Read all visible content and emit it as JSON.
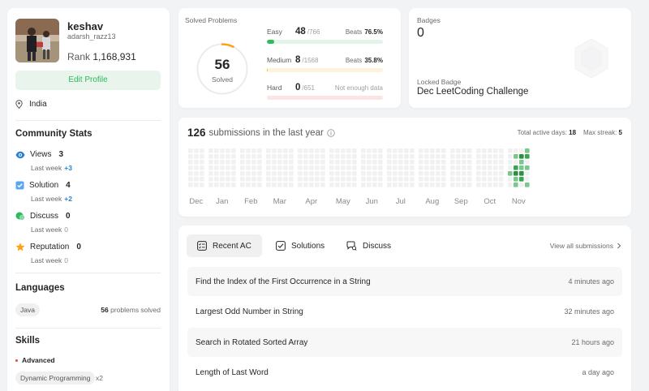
{
  "profile": {
    "name": "keshav",
    "handle": "adarsh_razz13",
    "rank_label": "Rank",
    "rank_value": "1,168,931",
    "edit_label": "Edit Profile",
    "location": "India"
  },
  "community": {
    "title": "Community Stats",
    "stats": [
      {
        "label": "Views",
        "value": "3",
        "sub_label": "Last week",
        "sub_value": "+3",
        "color": "#2a7fd4"
      },
      {
        "label": "Solution",
        "value": "4",
        "sub_label": "Last week",
        "sub_value": "+2",
        "color": "#2a7fd4"
      },
      {
        "label": "Discuss",
        "value": "0",
        "sub_label": "Last week",
        "sub_value": "0",
        "color": "#2cbb5d"
      },
      {
        "label": "Reputation",
        "value": "0",
        "sub_label": "Last week",
        "sub_value": "0",
        "color": "#ffa116"
      }
    ]
  },
  "languages": {
    "title": "Languages",
    "items": [
      {
        "name": "Java",
        "count": "56",
        "suffix": "problems solved"
      }
    ]
  },
  "skills": {
    "title": "Skills",
    "level": "Advanced",
    "items": [
      {
        "name": "Dynamic Programming",
        "count": "x2"
      }
    ]
  },
  "solved": {
    "title": "Solved Problems",
    "total": "56",
    "total_label": "Solved",
    "progress_fraction": 0.073,
    "difficulties": [
      {
        "name": "Easy",
        "solved": "48",
        "total": "/766",
        "beats_label": "Beats",
        "beats_value": "76.5%",
        "fraction": 0.063,
        "color": "#2cbb5d",
        "track": "#e3f4e8"
      },
      {
        "name": "Medium",
        "solved": "8",
        "total": "/1568",
        "beats_label": "Beats",
        "beats_value": "35.8%",
        "fraction": 0.005,
        "color": "#ffb800",
        "track": "#fdf3dc"
      },
      {
        "name": "Hard",
        "solved": "0",
        "total": "/651",
        "beats_label": "",
        "beats_value": "Not enough data",
        "fraction": 0,
        "color": "#ef4743",
        "track": "#fbe4e3"
      }
    ]
  },
  "badges": {
    "title": "Badges",
    "count": "0",
    "locked_label": "Locked Badge",
    "locked_name": "Dec LeetCoding Challenge"
  },
  "calendar": {
    "count": "126",
    "label": "submissions in the last year",
    "active_label": "Total active days:",
    "active_value": "18",
    "streak_label": "Max streak:",
    "streak_value": "5",
    "months": [
      "Dec",
      "Jan",
      "Feb",
      "Mar",
      "Apr",
      "May",
      "Jun",
      "Jul",
      "Aug",
      "Sep",
      "Oct",
      "Nov"
    ]
  },
  "recent": {
    "tabs": [
      "Recent AC",
      "Solutions",
      "Discuss"
    ],
    "view_all": "View all submissions",
    "rows": [
      {
        "title": "Find the Index of the First Occurrence in a String",
        "time": "4 minutes ago"
      },
      {
        "title": "Largest Odd Number in String",
        "time": "32 minutes ago"
      },
      {
        "title": "Search in Rotated Sorted Array",
        "time": "21 hours ago"
      },
      {
        "title": "Length of Last Word",
        "time": "a day ago"
      }
    ]
  }
}
